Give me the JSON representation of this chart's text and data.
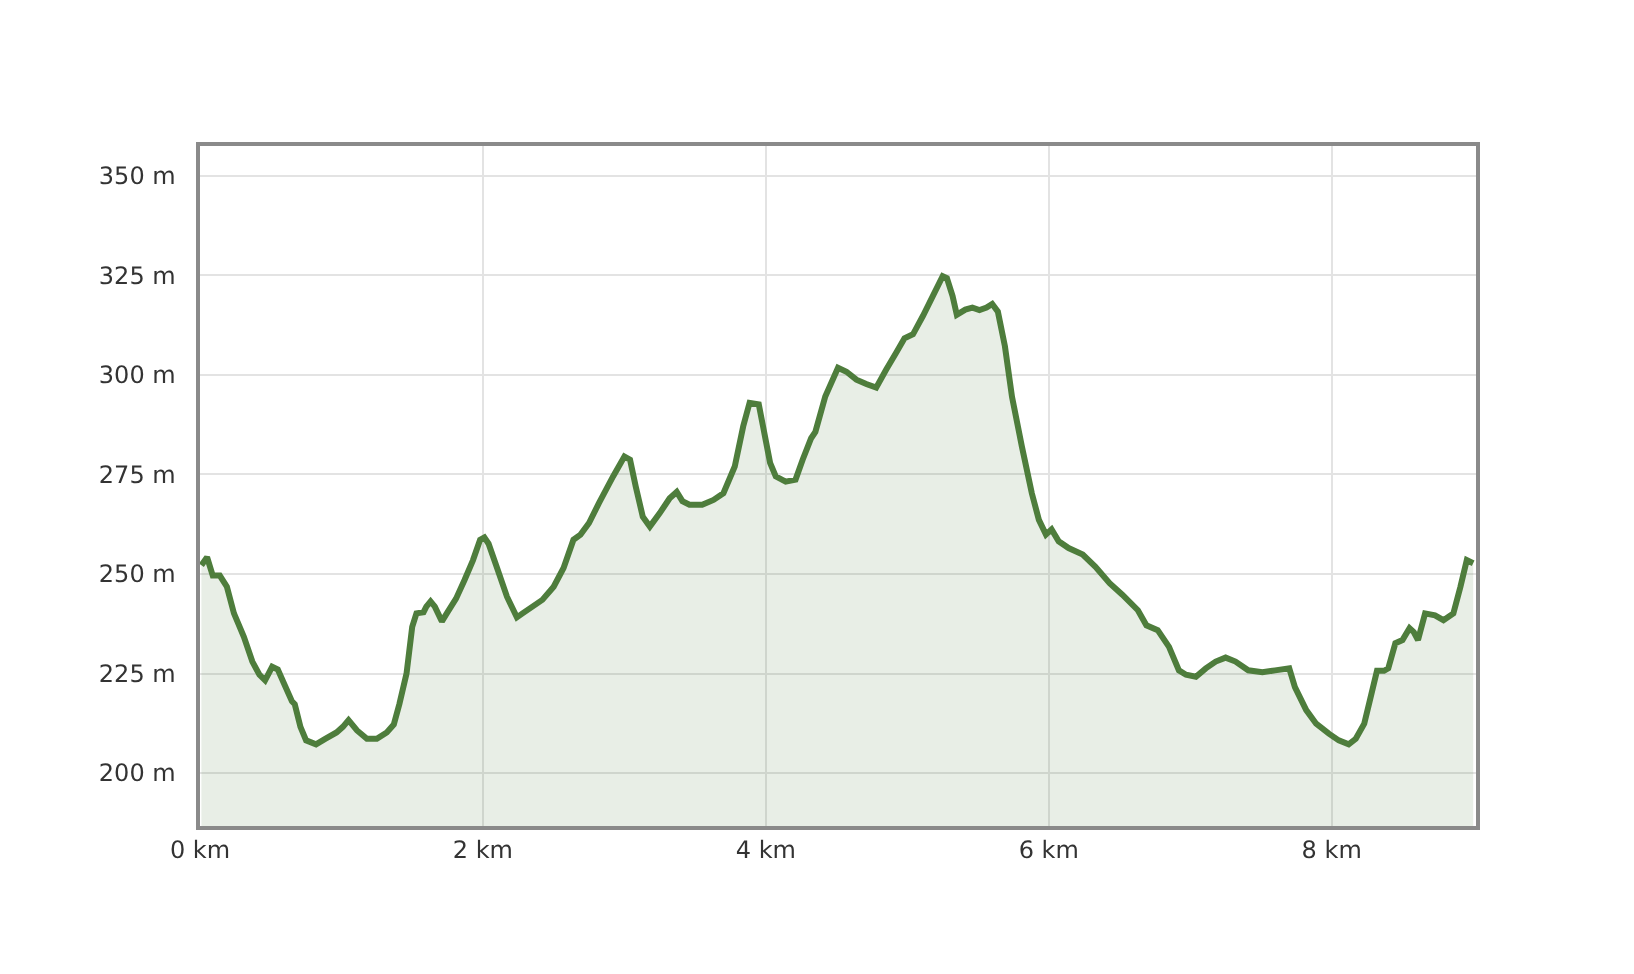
{
  "chart_data": {
    "type": "area",
    "x": [
      0.01,
      0.05,
      0.09,
      0.14,
      0.19,
      0.24,
      0.31,
      0.37,
      0.42,
      0.46,
      0.51,
      0.55,
      0.6,
      0.65,
      0.67,
      0.71,
      0.75,
      0.82,
      0.885,
      0.965,
      1.01,
      1.05,
      1.11,
      1.18,
      1.25,
      1.32,
      1.37,
      1.41,
      1.46,
      1.5,
      1.53,
      1.58,
      1.6,
      1.63,
      1.66,
      1.71,
      1.75,
      1.81,
      1.87,
      1.93,
      1.98,
      2.01,
      2.04,
      2.1,
      2.17,
      2.24,
      2.28,
      2.35,
      2.42,
      2.5,
      2.57,
      2.64,
      2.69,
      2.75,
      2.82,
      2.92,
      3.0,
      3.04,
      3.08,
      3.13,
      3.18,
      3.25,
      3.32,
      3.37,
      3.41,
      3.46,
      3.55,
      3.63,
      3.7,
      3.78,
      3.84,
      3.885,
      3.95,
      3.98,
      4.03,
      4.07,
      4.14,
      4.21,
      4.26,
      4.32,
      4.35,
      4.42,
      4.51,
      4.57,
      4.64,
      4.71,
      4.78,
      4.85,
      4.92,
      4.98,
      5.04,
      5.11,
      5.18,
      5.25,
      5.28,
      5.32,
      5.35,
      5.41,
      5.46,
      5.51,
      5.56,
      5.6,
      5.64,
      5.69,
      5.74,
      5.81,
      5.88,
      5.93,
      5.98,
      6.02,
      6.07,
      6.14,
      6.24,
      6.33,
      6.43,
      6.52,
      6.63,
      6.69,
      6.77,
      6.85,
      6.92,
      6.97,
      7.04,
      7.11,
      7.18,
      7.25,
      7.32,
      7.41,
      7.51,
      7.6,
      7.7,
      7.74,
      7.82,
      7.89,
      7.98,
      8.05,
      8.12,
      8.17,
      8.23,
      8.27,
      8.32,
      8.37,
      8.4,
      8.45,
      8.5,
      8.55,
      8.58,
      8.61,
      8.66,
      8.73,
      8.79,
      8.86,
      8.91,
      8.955,
      9.0
    ],
    "series": [
      {
        "color": "#4e7d3c",
        "values": [
          252.2,
          254.2,
          249.6,
          249.6,
          246.8,
          240.1,
          234.2,
          228,
          224.7,
          223.3,
          226.7,
          226,
          222,
          218,
          217.3,
          211.6,
          208.2,
          207.2,
          208.6,
          210.2,
          211.6,
          213.3,
          210.7,
          208.6,
          208.6,
          210.2,
          212.2,
          217.4,
          225,
          236.7,
          240.1,
          240.4,
          241.8,
          243.1,
          241.8,
          238.1,
          240.4,
          243.8,
          248.5,
          253.5,
          258.6,
          259.2,
          257.6,
          251.5,
          244.3,
          239.1,
          240.1,
          241.8,
          243.5,
          246.8,
          251.5,
          258.6,
          259.9,
          262.8,
          267.8,
          274.5,
          279.5,
          278.7,
          272,
          264.4,
          261.9,
          265.3,
          269,
          270.6,
          268.3,
          267.4,
          267.4,
          268.6,
          270.3,
          277,
          287.1,
          293,
          292.6,
          287.1,
          277.9,
          274.5,
          273.2,
          273.7,
          278.7,
          284.1,
          285.7,
          294.6,
          301.8,
          300.8,
          298.8,
          297.7,
          296.8,
          301.3,
          305.5,
          309.2,
          310.2,
          314.8,
          319.8,
          324.8,
          324.3,
          319.8,
          315.1,
          316.4,
          316.9,
          316.3,
          316.9,
          317.8,
          315.9,
          307.2,
          294.5,
          282,
          270.3,
          263.6,
          259.9,
          261.2,
          258.2,
          256.5,
          254.9,
          251.8,
          247.7,
          244.8,
          240.9,
          237.1,
          235.9,
          231.7,
          225.8,
          224.7,
          224.2,
          226.3,
          228,
          229,
          228,
          225.8,
          225.3,
          225.8,
          226.3,
          221.6,
          215.8,
          212.4,
          209.9,
          208.2,
          207.2,
          208.6,
          212.4,
          218.3,
          225.7,
          225.7,
          226.3,
          232.6,
          233.4,
          236.4,
          235.4,
          233.4,
          240.1,
          239.6,
          238.4,
          240.1,
          246.8,
          253.5,
          252.7
        ]
      }
    ],
    "xlim": [
      0,
      9.02
    ],
    "ylim": [
      186.7,
      357.5
    ],
    "xticks": [
      {
        "value": 0,
        "label": "0 km"
      },
      {
        "value": 2,
        "label": "2 km"
      },
      {
        "value": 4,
        "label": "4 km"
      },
      {
        "value": 6,
        "label": "6 km"
      },
      {
        "value": 8,
        "label": "8 km"
      }
    ],
    "yticks": [
      {
        "value": 200,
        "label": "200 m"
      },
      {
        "value": 225,
        "label": "225 m"
      },
      {
        "value": 250,
        "label": "250 m"
      },
      {
        "value": 275,
        "label": "275 m"
      },
      {
        "value": 300,
        "label": "300 m"
      },
      {
        "value": 325,
        "label": "325 m"
      },
      {
        "value": 350,
        "label": "350 m"
      }
    ],
    "grid": true
  }
}
